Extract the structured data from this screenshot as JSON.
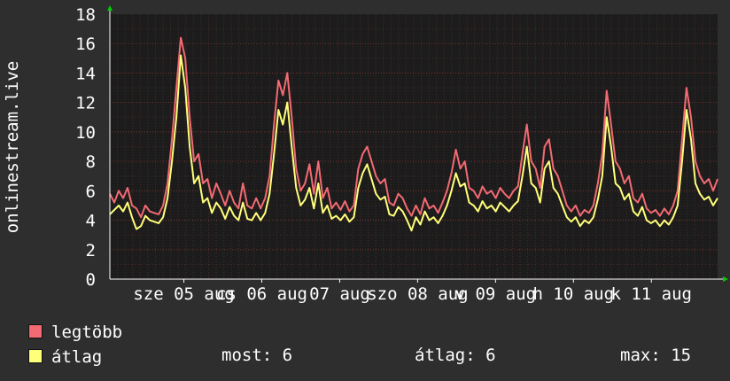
{
  "chart_data": {
    "type": "line",
    "ylabel": "onlinestream.live",
    "ylim": [
      0,
      18
    ],
    "yticks": [
      0,
      2,
      4,
      6,
      8,
      10,
      12,
      14,
      16,
      18
    ],
    "x_tick_labels": [
      "sze 05 aug",
      "cs 06 aug",
      "07 aug",
      "szo 08 aug",
      "v 09 aug",
      "h 10 aug",
      "k 11 aug"
    ],
    "colors": {
      "background": "#2e2e2e",
      "plot": "#1c1c1c",
      "grid": "#7a3030",
      "axis": "#ffffff",
      "arrow": "#00cc00"
    },
    "series": [
      {
        "name": "legtöbb",
        "color": "#f26a73",
        "values": [
          5.8,
          5.2,
          6.0,
          5.5,
          6.2,
          5.0,
          4.8,
          4.2,
          5.0,
          4.6,
          4.5,
          4.4,
          5.0,
          6.5,
          9.5,
          13.0,
          16.4,
          15.0,
          11.0,
          8.0,
          8.5,
          6.5,
          6.8,
          5.5,
          6.5,
          5.8,
          5.0,
          6.0,
          5.2,
          4.8,
          6.5,
          5.0,
          4.8,
          5.5,
          4.8,
          5.5,
          7.0,
          10.5,
          13.5,
          12.5,
          14.0,
          11.0,
          7.5,
          6.0,
          6.5,
          7.8,
          5.8,
          8.0,
          5.5,
          6.2,
          4.8,
          5.2,
          4.7,
          5.3,
          4.6,
          5.0,
          7.5,
          8.5,
          9.0,
          8.0,
          7.0,
          6.5,
          6.8,
          5.2,
          5.0,
          5.8,
          5.5,
          4.8,
          4.3,
          5.0,
          4.4,
          5.5,
          4.8,
          5.0,
          4.5,
          5.2,
          6.0,
          7.2,
          8.8,
          7.5,
          8.0,
          6.2,
          6.0,
          5.5,
          6.3,
          5.8,
          6.0,
          5.5,
          6.2,
          5.8,
          5.5,
          6.0,
          6.3,
          8.5,
          10.5,
          8.0,
          7.5,
          6.2,
          9.0,
          9.5,
          7.5,
          7.0,
          6.0,
          5.0,
          4.6,
          5.0,
          4.3,
          4.7,
          4.5,
          5.0,
          6.5,
          8.5,
          12.8,
          10.5,
          8.0,
          7.5,
          6.5,
          7.0,
          5.5,
          5.2,
          5.8,
          4.8,
          4.5,
          4.7,
          4.3,
          4.8,
          4.4,
          5.0,
          6.0,
          9.5,
          13.0,
          11.0,
          8.0,
          7.0,
          6.5,
          6.8,
          6.0,
          6.8
        ]
      },
      {
        "name": "átlag",
        "color": "#ffff7a",
        "values": [
          4.4,
          4.7,
          5.0,
          4.6,
          5.2,
          4.2,
          3.4,
          3.6,
          4.3,
          4.0,
          3.9,
          3.8,
          4.2,
          5.5,
          8.0,
          11.0,
          15.2,
          13.0,
          9.0,
          6.5,
          7.0,
          5.2,
          5.5,
          4.5,
          5.2,
          4.8,
          4.1,
          4.9,
          4.3,
          4.0,
          5.2,
          4.1,
          4.0,
          4.5,
          4.0,
          4.5,
          5.8,
          8.5,
          11.5,
          10.5,
          12.0,
          9.0,
          6.2,
          5.0,
          5.4,
          6.2,
          4.8,
          6.5,
          4.5,
          5.0,
          4.1,
          4.3,
          4.0,
          4.4,
          3.9,
          4.2,
          6.2,
          7.2,
          7.8,
          6.8,
          5.8,
          5.4,
          5.6,
          4.4,
          4.3,
          4.9,
          4.6,
          4.0,
          3.3,
          4.2,
          3.7,
          4.6,
          4.0,
          4.2,
          3.8,
          4.3,
          5.0,
          6.0,
          7.2,
          6.3,
          6.5,
          5.2,
          5.0,
          4.6,
          5.3,
          4.8,
          5.0,
          4.6,
          5.2,
          4.9,
          4.6,
          5.0,
          5.3,
          7.0,
          9.0,
          6.5,
          6.2,
          5.2,
          7.5,
          8.0,
          6.2,
          5.8,
          5.0,
          4.2,
          3.9,
          4.2,
          3.6,
          4.0,
          3.8,
          4.2,
          5.4,
          7.0,
          11.0,
          9.0,
          6.5,
          6.2,
          5.4,
          5.8,
          4.6,
          4.3,
          4.9,
          4.0,
          3.8,
          4.0,
          3.6,
          4.0,
          3.7,
          4.2,
          5.0,
          8.0,
          11.5,
          9.5,
          6.5,
          5.8,
          5.4,
          5.6,
          5.0,
          5.5
        ]
      }
    ]
  },
  "stats": {
    "now_label": "most:",
    "now_value": "6",
    "avg_label": "átlag:",
    "avg_value": "6",
    "max_label": "max:",
    "max_value": "15"
  }
}
